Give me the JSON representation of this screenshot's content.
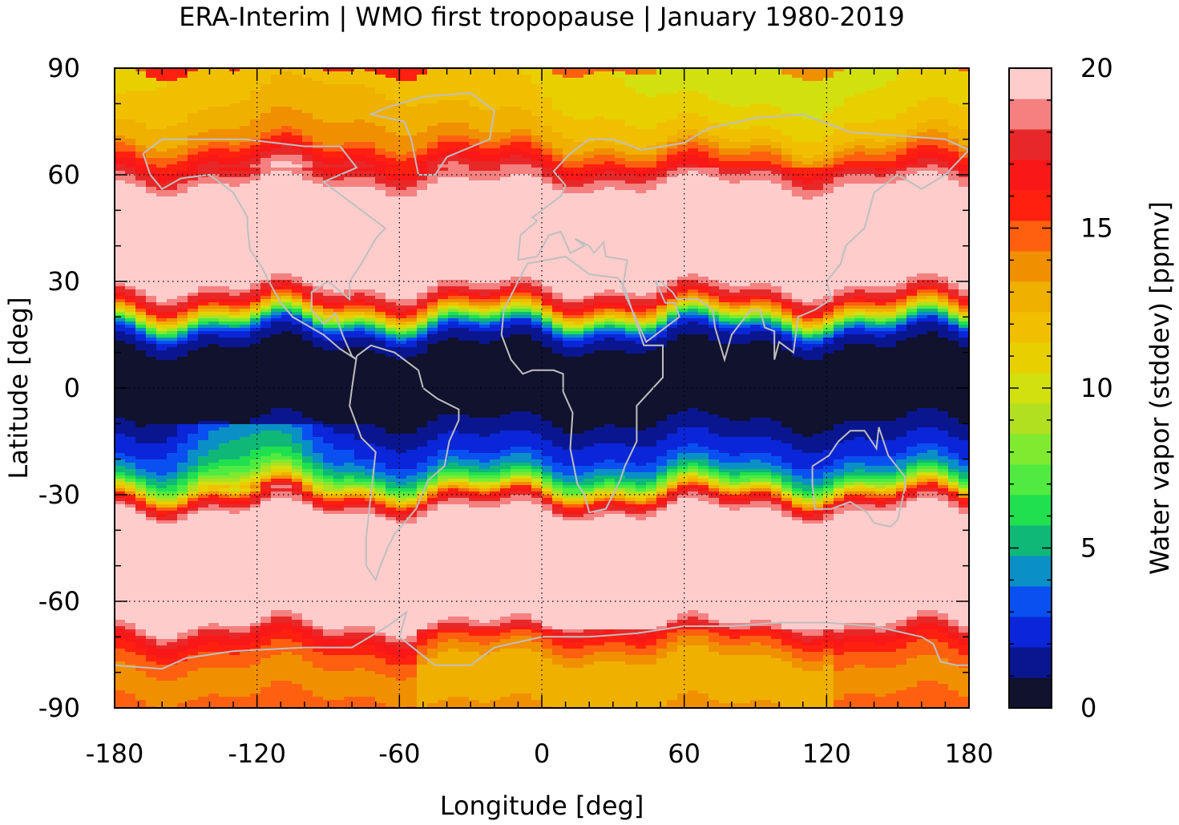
{
  "chart_data": {
    "type": "heatmap",
    "title": "ERA-Interim | WMO first tropopause | January 1980-2019",
    "xlabel": "Longitude [deg]",
    "ylabel": "Latitude [deg]",
    "colorbar_label": "Water vapor (stddev) [ppmv]",
    "xlim": [
      -180,
      180
    ],
    "ylim": [
      -90,
      90
    ],
    "x_ticks": [
      -180,
      -120,
      -60,
      0,
      60,
      120,
      180
    ],
    "x_tick_labels": [
      "-180",
      "-120",
      "-60",
      "0",
      "60",
      "120",
      "180"
    ],
    "y_ticks": [
      90,
      60,
      30,
      0,
      -30,
      -60,
      -90
    ],
    "y_tick_labels": [
      "90",
      "60",
      "30",
      "0",
      "-30",
      "-60",
      "-90"
    ],
    "colorbar_range": [
      0,
      20
    ],
    "colorbar_ticks": [
      0,
      5,
      10,
      15,
      20
    ],
    "colorbar_tick_labels": [
      "0",
      "5",
      "10",
      "15",
      "20"
    ],
    "grid": true,
    "coastlines": true,
    "colorbar_colors": [
      "#10122e",
      "#0a1690",
      "#0a26d8",
      "#0a50f0",
      "#0a90c4",
      "#10b878",
      "#20e050",
      "#50ea40",
      "#80ea30",
      "#b0e020",
      "#d2e010",
      "#e8d000",
      "#f0c000",
      "#f0b000",
      "#f09000",
      "#ff6010",
      "#ff2010",
      "#f81818",
      "#e82828",
      "#f48080",
      "#ffcccc"
    ],
    "zonal_profile": {
      "lat": [
        90,
        80,
        70,
        65,
        60,
        55,
        50,
        45,
        40,
        35,
        30,
        25,
        22,
        20,
        18,
        16,
        14,
        10,
        5,
        0,
        -5,
        -10,
        -15,
        -20,
        -24,
        -27,
        -29,
        -31,
        -33,
        -36,
        -40,
        -50,
        -60,
        -65,
        -70,
        -75,
        -80,
        -85,
        -90
      ],
      "value": [
        11,
        11.5,
        13,
        15.5,
        18,
        20,
        20,
        20,
        20,
        20,
        20,
        17,
        13,
        9,
        5,
        2.5,
        1.5,
        0.5,
        0.3,
        0.3,
        0.5,
        1,
        2,
        3,
        5,
        8,
        12,
        16,
        18,
        20,
        20,
        20,
        20,
        20,
        17,
        15,
        14,
        14,
        15
      ]
    }
  },
  "colors": {
    "grid": "#000000",
    "coastline": "#bfbfbf",
    "frame": "#000000"
  }
}
